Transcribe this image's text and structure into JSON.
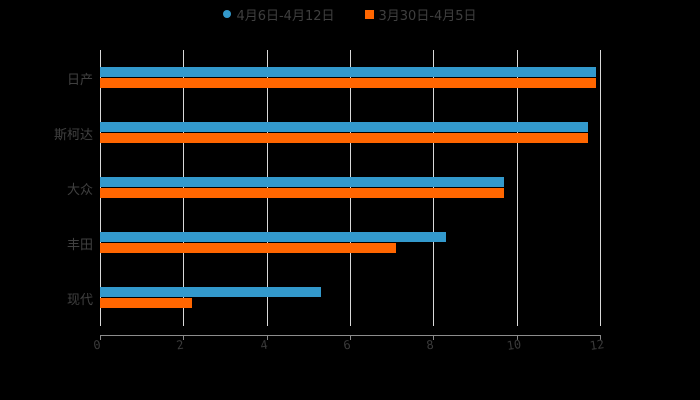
{
  "chart_data": {
    "type": "bar",
    "orientation": "horizontal",
    "title": "",
    "xlabel": "",
    "ylabel": "",
    "categories": [
      "日产",
      "斯柯达",
      "大众",
      "丰田",
      "现代"
    ],
    "series": [
      {
        "name": "4月6日-4月12日",
        "color": "#3399cc",
        "values": [
          11.9,
          11.7,
          9.7,
          8.3,
          5.3
        ]
      },
      {
        "name": "3月30日-4月5日",
        "color": "#ff6600",
        "values": [
          11.9,
          11.7,
          9.7,
          7.1,
          2.2
        ]
      }
    ],
    "xlim": [
      0,
      12
    ],
    "xticks": [
      "0",
      "2",
      "4",
      "6",
      "8",
      "10",
      "12"
    ],
    "grid": "vertical",
    "legend_position": "top"
  },
  "legend": {
    "items": [
      {
        "label": "4月6日-4月12日",
        "color": "#3399cc",
        "shape": "circle"
      },
      {
        "label": "3月30日-4月5日",
        "color": "#ff6600",
        "shape": "square"
      }
    ]
  }
}
